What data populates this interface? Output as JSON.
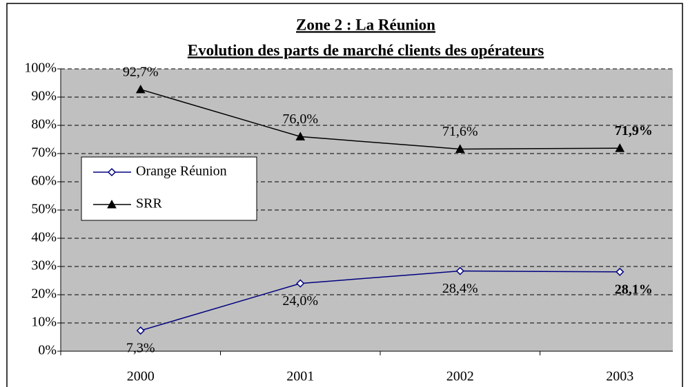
{
  "chart_data": {
    "type": "line",
    "title": "Zone 2 : La Réunion",
    "subtitle": "Evolution des parts de marché clients des opérateurs",
    "categories": [
      "2000",
      "2001",
      "2002",
      "2003"
    ],
    "series": [
      {
        "name": "Orange Réunion",
        "color": "#000080",
        "marker": "diamond",
        "values": [
          7.3,
          24.0,
          28.4,
          28.1
        ],
        "value_labels": [
          "7,3%",
          "24,0%",
          "28,4%",
          "28,1%"
        ]
      },
      {
        "name": "SRR",
        "color": "#000000",
        "marker": "triangle",
        "values": [
          92.7,
          76.0,
          71.6,
          71.9
        ],
        "value_labels": [
          "92,7%",
          "76,0%",
          "71,6%",
          "71,9%"
        ]
      }
    ],
    "ylim": [
      0,
      100
    ],
    "yticks": [
      {
        "value": 0,
        "label": "0%"
      },
      {
        "value": 10,
        "label": "10%"
      },
      {
        "value": 20,
        "label": "20%"
      },
      {
        "value": 30,
        "label": "30%"
      },
      {
        "value": 40,
        "label": "40%"
      },
      {
        "value": 50,
        "label": "50%"
      },
      {
        "value": 60,
        "label": "60%"
      },
      {
        "value": 70,
        "label": "70%"
      },
      {
        "value": 80,
        "label": "80%"
      },
      {
        "value": 90,
        "label": "90%"
      },
      {
        "value": 100,
        "label": "100%"
      }
    ],
    "grid": true,
    "legend": "left"
  }
}
